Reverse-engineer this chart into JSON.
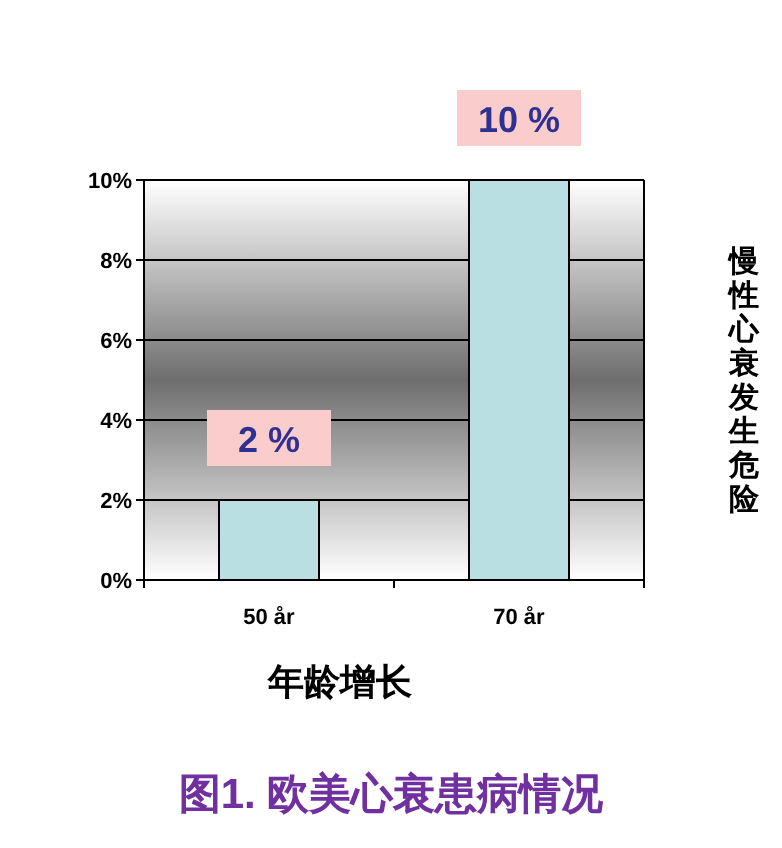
{
  "chart_data": {
    "type": "bar",
    "title": "图1.  欧美心衰患病情况",
    "xlabel": "年龄增长",
    "ylabel": "慢性心衰发生危险",
    "categories": [
      "50 år",
      "70 år"
    ],
    "values": [
      2,
      10
    ],
    "color": "#b9dfe3",
    "value_labels": [
      "2 %",
      "10 %"
    ],
    "ylim": [
      0,
      10
    ],
    "yticks": [
      {
        "value": 0,
        "label": "0%"
      },
      {
        "value": 2,
        "label": "2%"
      },
      {
        "value": 4,
        "label": "4%"
      },
      {
        "value": 6,
        "label": "6%"
      },
      {
        "value": 8,
        "label": "8%"
      },
      {
        "value": 10,
        "label": "10%"
      }
    ],
    "grid": "y"
  }
}
